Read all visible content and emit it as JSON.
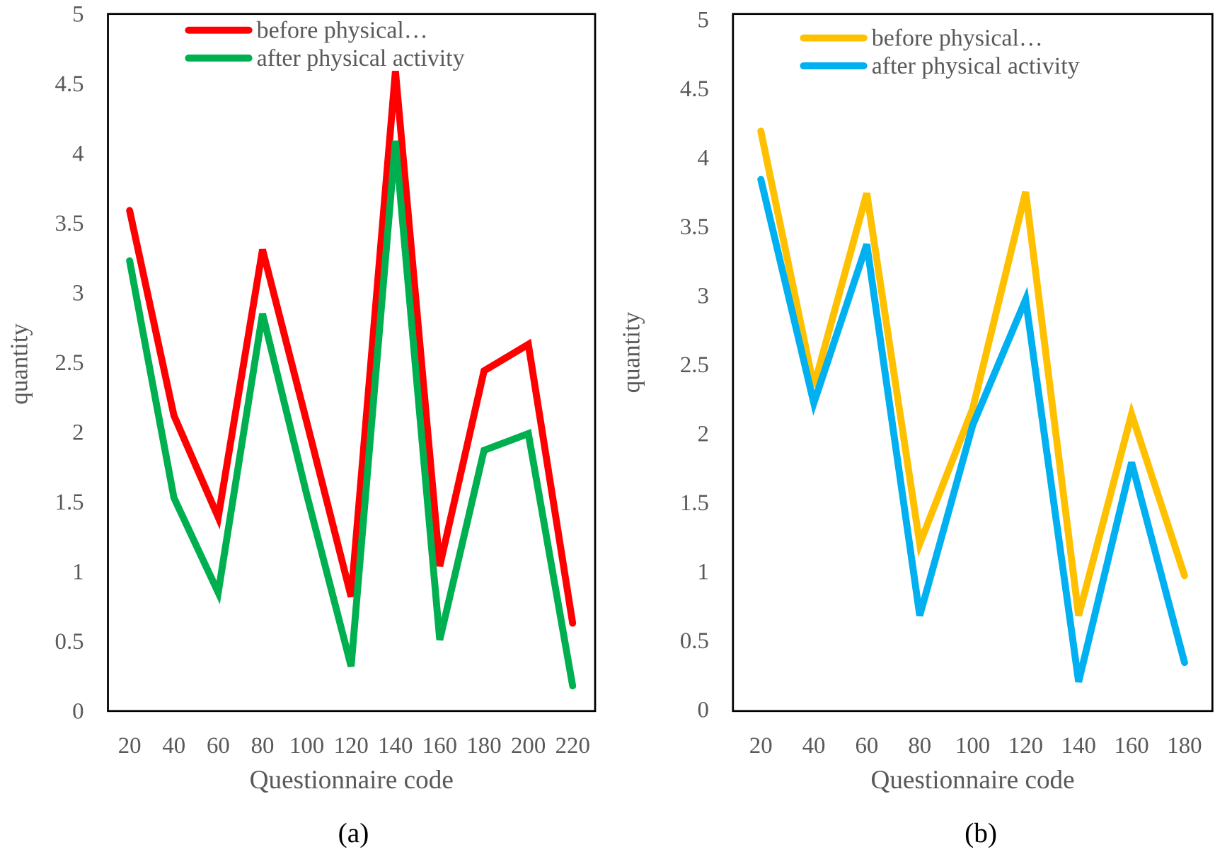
{
  "chart_data": [
    {
      "type": "line",
      "caption": "(a)",
      "xlabel": "Questionnaire code",
      "ylabel": "quantity",
      "ylim": [
        0,
        5
      ],
      "yticks": [
        "0",
        "0.5",
        "1",
        "1.5",
        "2",
        "2.5",
        "3",
        "3.5",
        "4",
        "4.5",
        "5"
      ],
      "categories": [
        "20",
        "40",
        "60",
        "80",
        "100",
        "120",
        "140",
        "160",
        "180",
        "200",
        "220"
      ],
      "legend_position": "top",
      "grid": false,
      "series": [
        {
          "name": "before physical…",
          "color": "#ff0000",
          "values": [
            3.59,
            2.12,
            1.39,
            3.31,
            2.07,
            0.82,
            4.59,
            1.04,
            2.44,
            2.63,
            0.63
          ]
        },
        {
          "name": "after physical activity",
          "color": "#00b050",
          "values": [
            3.23,
            1.53,
            0.85,
            2.85,
            1.55,
            0.32,
            4.09,
            0.51,
            1.87,
            1.99,
            0.18
          ]
        }
      ]
    },
    {
      "type": "line",
      "caption": "(b)",
      "xlabel": "Questionnaire code",
      "ylabel": "quantity",
      "ylim": [
        0,
        5
      ],
      "yticks": [
        "0",
        "0.5",
        "1",
        "1.5",
        "2",
        "2.5",
        "3",
        "3.5",
        "4",
        "4.5",
        "5"
      ],
      "categories": [
        "20",
        "40",
        "60",
        "80",
        "100",
        "120",
        "140",
        "160",
        "180"
      ],
      "legend_position": "top",
      "grid": false,
      "series": [
        {
          "name": "before physical…",
          "color": "#ffc000",
          "values": [
            4.19,
            2.34,
            3.74,
            1.2,
            2.18,
            3.75,
            0.68,
            2.14,
            0.97
          ]
        },
        {
          "name": "after physical activity",
          "color": "#00b0f0",
          "values": [
            3.84,
            2.22,
            3.37,
            0.68,
            2.06,
            2.97,
            0.2,
            1.79,
            0.34
          ]
        }
      ]
    }
  ]
}
